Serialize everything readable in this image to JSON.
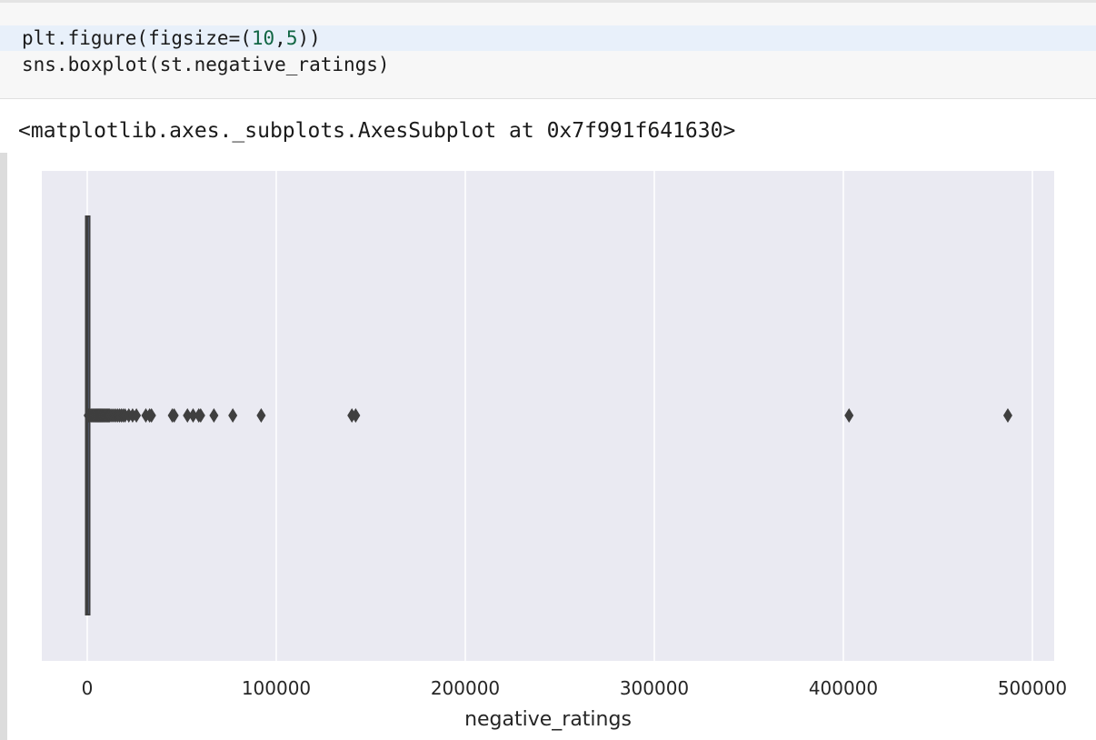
{
  "input_cell": {
    "line1": {
      "prefix": "plt.figure(figsize=(",
      "num1": "10",
      "comma": ",",
      "num2": "5",
      "suffix": "))"
    },
    "line2": "sns.boxplot(st.negative_ratings)"
  },
  "output_cell": {
    "repr_text": "<matplotlib.axes._subplots.AxesSubplot at 0x7f991f641630>"
  },
  "chart_data": {
    "type": "boxplot",
    "xlabel": "negative_ratings",
    "ylabel": "",
    "xlim": [
      -25000,
      510000
    ],
    "xticks": [
      0,
      100000,
      200000,
      300000,
      400000,
      500000
    ],
    "xtick_labels": [
      "0",
      "100000",
      "200000",
      "300000",
      "400000",
      "500000"
    ],
    "grid": true,
    "box": {
      "q1": 5,
      "median": 14,
      "q3": 42,
      "whisker_low": 0,
      "whisker_high": 97
    },
    "outliers": [
      500,
      1000,
      1500,
      2000,
      2500,
      3000,
      3500,
      4000,
      4500,
      5000,
      5500,
      6000,
      6500,
      7000,
      7500,
      8000,
      8500,
      9000,
      9500,
      10000,
      10500,
      11000,
      11500,
      12000,
      13000,
      14000,
      15000,
      16000,
      17000,
      18000,
      19000,
      20000,
      22000,
      24000,
      26000,
      31000,
      33000,
      34000,
      45000,
      46000,
      53000,
      56000,
      59000,
      60000,
      67000,
      77000,
      92000,
      140000,
      142000,
      403000,
      487000
    ],
    "colors": {
      "background": "#eaeaf2",
      "grid": "#ffffff",
      "box_line": "#3f3f3f",
      "tick_text": "#262626"
    }
  }
}
